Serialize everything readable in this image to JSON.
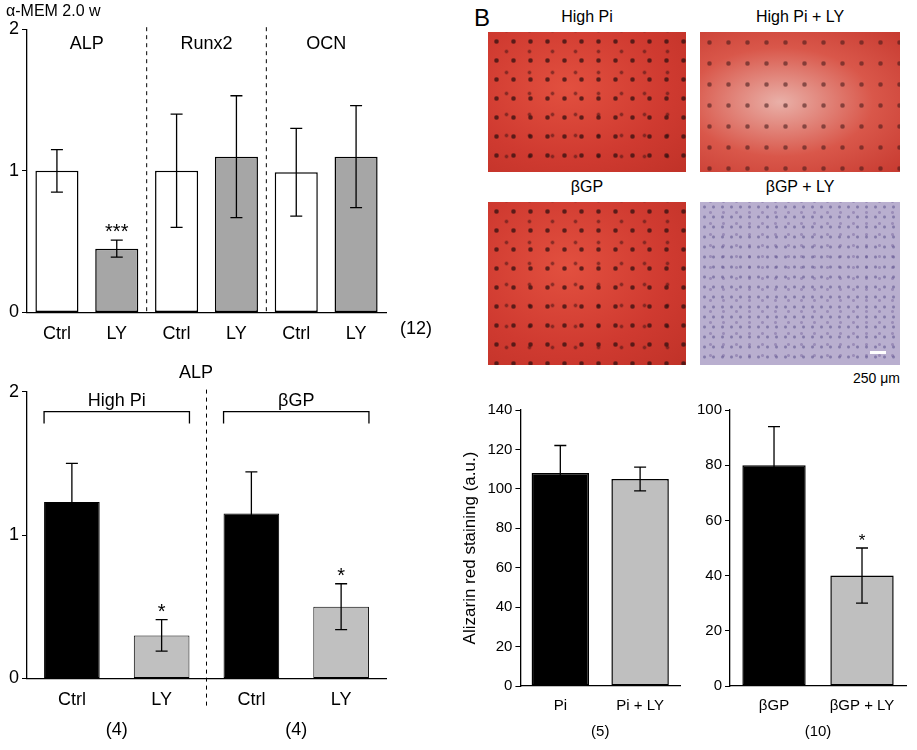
{
  "chart_data": [
    {
      "type": "bar",
      "title": "α-MEM 2.0 w",
      "categories": [
        "Ctrl",
        "LY",
        "Ctrl",
        "LY",
        "Ctrl",
        "LY"
      ],
      "groups": [
        "ALP",
        "Runx2",
        "OCN"
      ],
      "values": [
        1.0,
        0.45,
        1.0,
        1.1,
        0.99,
        1.1
      ],
      "errors": [
        0.15,
        0.06,
        0.4,
        0.43,
        0.31,
        0.36
      ],
      "significance": [
        null,
        "***",
        null,
        null,
        null,
        null
      ],
      "n_labels": [
        "(12)"
      ],
      "colors": [
        "#ffffff",
        "#a6a6a6",
        "#ffffff",
        "#a6a6a6",
        "#ffffff",
        "#a6a6a6"
      ],
      "ylim": [
        0,
        2
      ],
      "yticks": [
        0,
        1,
        2
      ],
      "grid": false
    },
    {
      "type": "bar",
      "title": "ALP",
      "categories": [
        "Ctrl",
        "LY",
        "Ctrl",
        "LY"
      ],
      "groups": [
        "High Pi",
        "βGP"
      ],
      "values": [
        1.23,
        0.3,
        1.15,
        0.5
      ],
      "errors": [
        0.27,
        0.11,
        0.29,
        0.16
      ],
      "significance": [
        null,
        "*",
        null,
        "*"
      ],
      "n_labels": [
        "(4)",
        "(4)"
      ],
      "colors": [
        "#000000",
        "#c0c0c0",
        "#000000",
        "#c0c0c0"
      ],
      "ylim": [
        0,
        2
      ],
      "yticks": [
        0,
        1,
        2
      ],
      "grid": false
    },
    {
      "type": "bar",
      "y_label": "Alizarin red staining (a.u.)",
      "categories": [
        "Pi",
        "Pi + LY"
      ],
      "values": [
        108,
        105
      ],
      "errors": [
        14,
        6
      ],
      "significance": [
        null,
        null
      ],
      "n_labels": [
        "(5)"
      ],
      "colors": [
        "#000000",
        "#bfbfbf"
      ],
      "ylim": [
        0,
        140
      ],
      "yticks": [
        0,
        20,
        40,
        60,
        80,
        100,
        120,
        140
      ],
      "grid": false
    },
    {
      "type": "bar",
      "categories": [
        "βGP",
        "βGP + LY"
      ],
      "values": [
        80,
        40
      ],
      "errors": [
        14,
        10
      ],
      "significance": [
        null,
        "*"
      ],
      "n_labels": [
        "(10)"
      ],
      "colors": [
        "#000000",
        "#bfbfbf"
      ],
      "ylim": [
        0,
        100
      ],
      "yticks": [
        0,
        20,
        40,
        60,
        80,
        100
      ],
      "grid": false
    }
  ],
  "panel_b": {
    "label": "B",
    "images": [
      "High Pi",
      "High Pi + LY",
      "βGP",
      "βGP + LY"
    ],
    "scale_bar": "250 μm"
  }
}
